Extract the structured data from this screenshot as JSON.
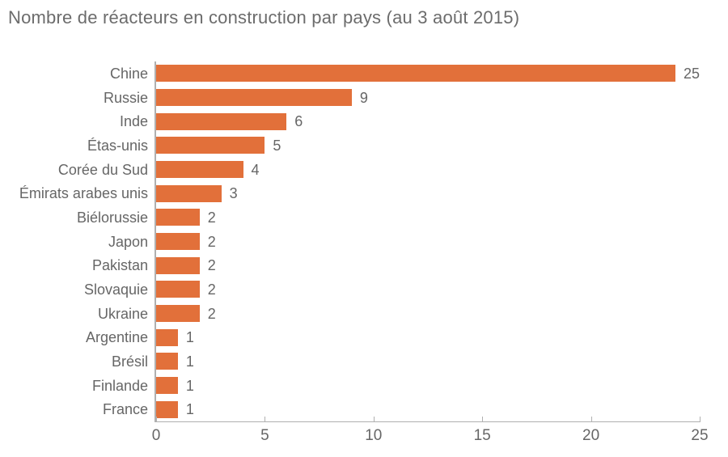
{
  "title": "Nombre de réacteurs en construction par pays (au 3 août 2015)",
  "colors": {
    "bar": "#e2703a",
    "axis": "#b0b0b0",
    "text": "#666666",
    "title_text": "#6c6c6c"
  },
  "chart_data": {
    "type": "bar",
    "orientation": "horizontal",
    "title": "Nombre de réacteurs en construction par pays (au 3 août 2015)",
    "categories": [
      "Chine",
      "Russie",
      "Inde",
      "Étas-unis",
      "Corée du Sud",
      "Émirats arabes unis",
      "Biélorussie",
      "Japon",
      "Pakistan",
      "Slovaquie",
      "Ukraine",
      "Argentine",
      "Brésil",
      "Finlande",
      "France"
    ],
    "values": [
      25,
      9,
      6,
      5,
      4,
      3,
      2,
      2,
      2,
      2,
      2,
      1,
      1,
      1,
      1
    ],
    "xlabel": "",
    "ylabel": "",
    "xlim": [
      0,
      25
    ],
    "xticks": [
      0,
      5,
      10,
      15,
      20,
      25
    ],
    "grid": false,
    "data_labels": true,
    "legend": null
  }
}
